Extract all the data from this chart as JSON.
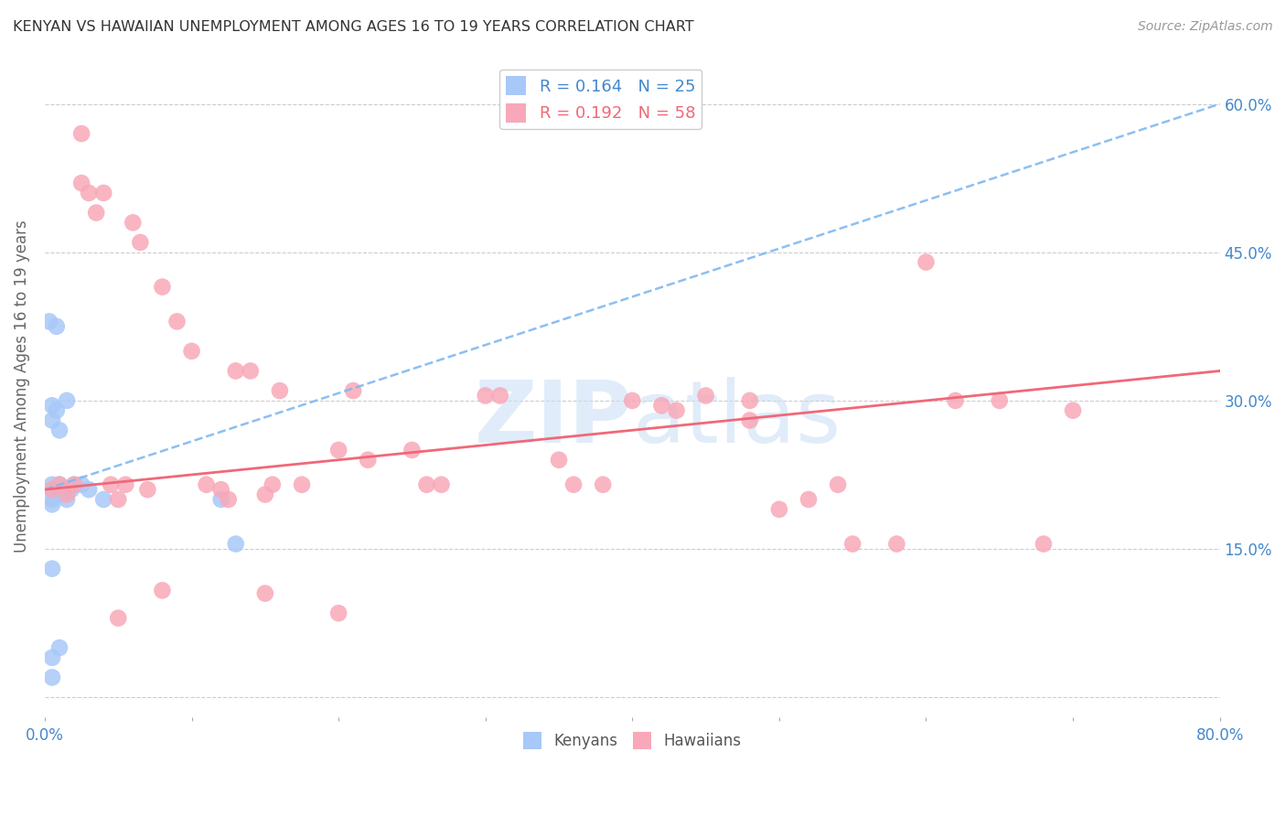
{
  "title": "KENYAN VS HAWAIIAN UNEMPLOYMENT AMONG AGES 16 TO 19 YEARS CORRELATION CHART",
  "source": "Source: ZipAtlas.com",
  "ylabel": "Unemployment Among Ages 16 to 19 years",
  "xlim": [
    0.0,
    0.8
  ],
  "ylim": [
    -0.02,
    0.65
  ],
  "ytick_vals": [
    0.0,
    0.15,
    0.3,
    0.45,
    0.6
  ],
  "ytick_labels": [
    "",
    "15.0%",
    "30.0%",
    "45.0%",
    "60.0%"
  ],
  "xtick_vals": [
    0.0,
    0.1,
    0.2,
    0.3,
    0.4,
    0.5,
    0.6,
    0.7,
    0.8
  ],
  "xtick_labels": [
    "0.0%",
    "",
    "",
    "",
    "",
    "",
    "",
    "",
    "80.0%"
  ],
  "kenyan_R": 0.164,
  "kenyan_N": 25,
  "hawaiian_R": 0.192,
  "hawaiian_N": 58,
  "kenyan_color": "#a8c8f8",
  "hawaiian_color": "#f8a8b8",
  "kenyan_trend_color": "#80b8f0",
  "hawaiian_trend_color": "#f06878",
  "grid_color": "#cccccc",
  "axis_label_color": "#4488cc",
  "title_color": "#333333",
  "background_color": "#ffffff",
  "watermark_color": "#cce0f5",
  "kenyan_x": [
    0.003,
    0.005,
    0.005,
    0.005,
    0.005,
    0.005,
    0.005,
    0.005,
    0.005,
    0.008,
    0.008,
    0.01,
    0.01,
    0.01,
    0.012,
    0.015,
    0.015,
    0.018,
    0.02,
    0.025,
    0.03,
    0.04,
    0.12,
    0.13,
    0.005
  ],
  "kenyan_y": [
    0.38,
    0.295,
    0.28,
    0.215,
    0.21,
    0.2,
    0.195,
    0.13,
    0.04,
    0.375,
    0.29,
    0.27,
    0.215,
    0.05,
    0.205,
    0.3,
    0.2,
    0.21,
    0.215,
    0.215,
    0.21,
    0.2,
    0.2,
    0.155,
    0.02
  ],
  "hawaiian_x": [
    0.005,
    0.01,
    0.015,
    0.02,
    0.025,
    0.025,
    0.03,
    0.035,
    0.04,
    0.045,
    0.05,
    0.055,
    0.06,
    0.065,
    0.07,
    0.08,
    0.09,
    0.1,
    0.11,
    0.12,
    0.125,
    0.13,
    0.14,
    0.15,
    0.155,
    0.16,
    0.175,
    0.2,
    0.21,
    0.22,
    0.25,
    0.26,
    0.27,
    0.3,
    0.31,
    0.35,
    0.36,
    0.38,
    0.4,
    0.42,
    0.43,
    0.45,
    0.48,
    0.5,
    0.52,
    0.54,
    0.55,
    0.58,
    0.6,
    0.62,
    0.65,
    0.68,
    0.7,
    0.15,
    0.2,
    0.05,
    0.08,
    0.48
  ],
  "hawaiian_y": [
    0.21,
    0.215,
    0.205,
    0.215,
    0.57,
    0.52,
    0.51,
    0.49,
    0.51,
    0.215,
    0.2,
    0.215,
    0.48,
    0.46,
    0.21,
    0.415,
    0.38,
    0.35,
    0.215,
    0.21,
    0.2,
    0.33,
    0.33,
    0.205,
    0.215,
    0.31,
    0.215,
    0.25,
    0.31,
    0.24,
    0.25,
    0.215,
    0.215,
    0.305,
    0.305,
    0.24,
    0.215,
    0.215,
    0.3,
    0.295,
    0.29,
    0.305,
    0.3,
    0.19,
    0.2,
    0.215,
    0.155,
    0.155,
    0.44,
    0.3,
    0.3,
    0.155,
    0.29,
    0.105,
    0.085,
    0.08,
    0.108,
    0.28
  ]
}
